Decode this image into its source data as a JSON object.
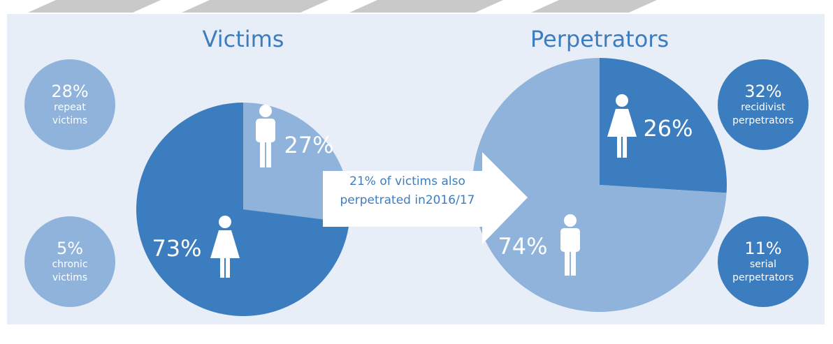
{
  "chart_data": [
    {
      "type": "pie",
      "title": "Victims",
      "values": [
        27,
        73
      ],
      "value_labels": [
        "27%",
        "73%"
      ],
      "colors": [
        "#8fb3db",
        "#3c7dc0"
      ]
    },
    {
      "type": "pie",
      "title": "Perpetrators",
      "values": [
        26,
        74
      ],
      "value_labels": [
        "26%",
        "74%"
      ],
      "colors": [
        "#3c7dc0",
        "#8fb3db"
      ]
    }
  ],
  "callouts": [
    {
      "value": "28%",
      "label": "repeat victims"
    },
    {
      "value": "5%",
      "label": "chronic victims"
    },
    {
      "value": "32%",
      "label": "recidivist perpetrators"
    },
    {
      "value": "11%",
      "label": "serial perpetrators"
    }
  ],
  "arrow_text": "21% of victims also perpetrated in2016/17"
}
